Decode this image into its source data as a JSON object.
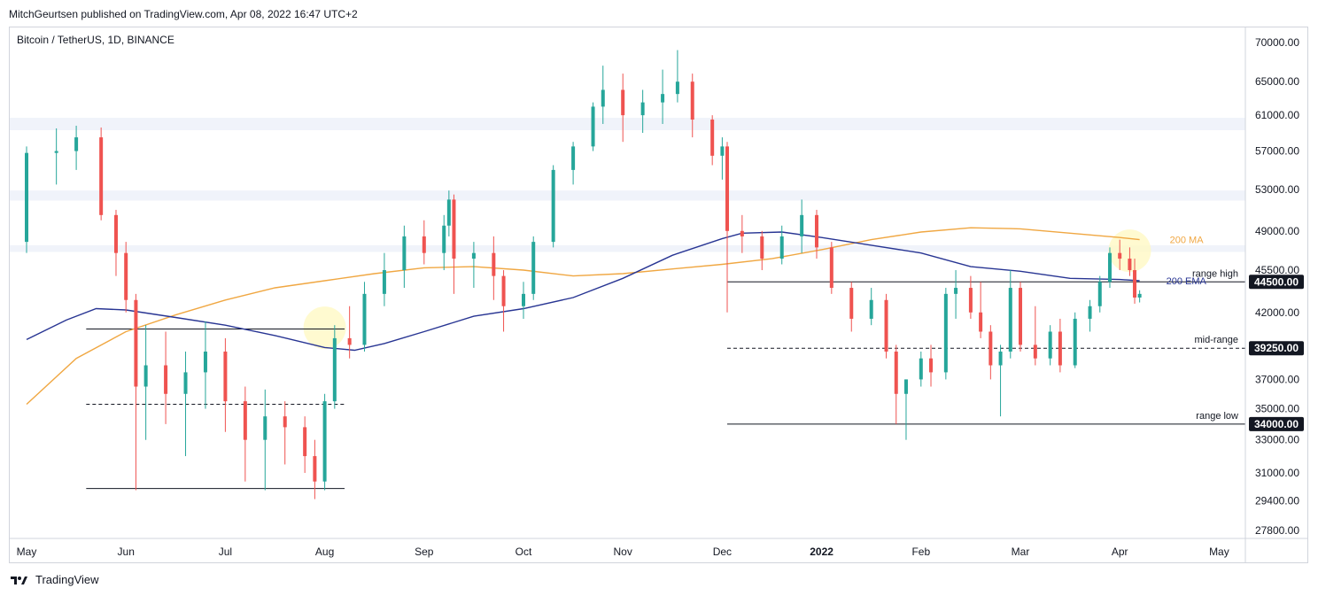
{
  "header": {
    "published": "MitchGeurtsen published on TradingView.com, Apr 08, 2022 16:47 UTC+2",
    "symbol": "Bitcoin / TetherUS, 1D, BINANCE"
  },
  "footer": {
    "brand": "TradingView"
  },
  "colors": {
    "up": "#26a69a",
    "down": "#ef5350",
    "ma": "#f0a742",
    "ema": "#283593",
    "zone": "#f0f3fa",
    "highlight": "#fff9c4",
    "axis_text": "#131722"
  },
  "chart_data": {
    "type": "candlestick",
    "title": "Bitcoin / TetherUS, 1D, BINANCE",
    "x_ticks": [
      "May",
      "Jun",
      "Jul",
      "Aug",
      "Sep",
      "Oct",
      "Nov",
      "Dec",
      "2022",
      "Feb",
      "Mar",
      "Apr",
      "May"
    ],
    "y_ticks": [
      70000,
      65000,
      61000,
      57000,
      53000,
      49000,
      45500,
      42000,
      37000,
      35000,
      33000,
      31000,
      29400,
      27800
    ],
    "y_tick_labels": [
      "70000.00",
      "65000.00",
      "61000.00",
      "57000.00",
      "53000.00",
      "49000.00",
      "45500.00",
      "42000.00",
      "37000.00",
      "35000.00",
      "33000.00",
      "31000.00",
      "29400.00",
      "27800.00"
    ],
    "y_scale": "log",
    "candles": [
      {
        "m": 0.0,
        "o": 48000,
        "h": 57500,
        "l": 47000,
        "c": 56800
      },
      {
        "m": 0.3,
        "o": 56800,
        "h": 59500,
        "l": 53500,
        "c": 57000
      },
      {
        "m": 0.5,
        "o": 57000,
        "h": 59800,
        "l": 55000,
        "c": 58500
      },
      {
        "m": 0.75,
        "o": 58500,
        "h": 59600,
        "l": 50000,
        "c": 50500
      },
      {
        "m": 0.9,
        "o": 50500,
        "h": 51000,
        "l": 45000,
        "c": 47000
      },
      {
        "m": 1.0,
        "o": 47000,
        "h": 48000,
        "l": 42000,
        "c": 43000
      },
      {
        "m": 1.1,
        "o": 43000,
        "h": 43500,
        "l": 30000,
        "c": 36500
      },
      {
        "m": 1.2,
        "o": 36500,
        "h": 41000,
        "l": 33000,
        "c": 38000
      },
      {
        "m": 1.4,
        "o": 38000,
        "h": 40500,
        "l": 34000,
        "c": 36000
      },
      {
        "m": 1.6,
        "o": 36000,
        "h": 39000,
        "l": 32000,
        "c": 37500
      },
      {
        "m": 1.8,
        "o": 37500,
        "h": 41300,
        "l": 35000,
        "c": 39000
      },
      {
        "m": 2.0,
        "o": 39000,
        "h": 40000,
        "l": 33500,
        "c": 35500
      },
      {
        "m": 2.2,
        "o": 35500,
        "h": 36500,
        "l": 30500,
        "c": 33000
      },
      {
        "m": 2.4,
        "o": 33000,
        "h": 36300,
        "l": 30000,
        "c": 34500
      },
      {
        "m": 2.6,
        "o": 34500,
        "h": 35500,
        "l": 31500,
        "c": 33800
      },
      {
        "m": 2.8,
        "o": 33800,
        "h": 34500,
        "l": 31000,
        "c": 32000
      },
      {
        "m": 2.9,
        "o": 32000,
        "h": 33000,
        "l": 29500,
        "c": 30500
      },
      {
        "m": 3.0,
        "o": 30500,
        "h": 36000,
        "l": 30000,
        "c": 35500
      },
      {
        "m": 3.1,
        "o": 35500,
        "h": 41000,
        "l": 35000,
        "c": 40000
      },
      {
        "m": 3.25,
        "o": 40000,
        "h": 42500,
        "l": 38500,
        "c": 39500
      },
      {
        "m": 3.4,
        "o": 39500,
        "h": 44500,
        "l": 39000,
        "c": 43500
      },
      {
        "m": 3.6,
        "o": 43500,
        "h": 47000,
        "l": 42500,
        "c": 45500
      },
      {
        "m": 3.8,
        "o": 45500,
        "h": 49500,
        "l": 44000,
        "c": 48500
      },
      {
        "m": 4.0,
        "o": 48500,
        "h": 50000,
        "l": 46000,
        "c": 47000
      },
      {
        "m": 4.2,
        "o": 47000,
        "h": 50500,
        "l": 45500,
        "c": 49500
      },
      {
        "m": 4.25,
        "o": 49500,
        "h": 52900,
        "l": 48500,
        "c": 52000
      },
      {
        "m": 4.3,
        "o": 52000,
        "h": 52500,
        "l": 43500,
        "c": 46500
      },
      {
        "m": 4.5,
        "o": 46500,
        "h": 48000,
        "l": 44000,
        "c": 47000
      },
      {
        "m": 4.7,
        "o": 47000,
        "h": 48500,
        "l": 43000,
        "c": 45000
      },
      {
        "m": 4.8,
        "o": 45000,
        "h": 45500,
        "l": 40500,
        "c": 42500
      },
      {
        "m": 5.0,
        "o": 42500,
        "h": 44500,
        "l": 41500,
        "c": 43500
      },
      {
        "m": 5.1,
        "o": 43500,
        "h": 48500,
        "l": 43000,
        "c": 48000
      },
      {
        "m": 5.3,
        "o": 48000,
        "h": 55500,
        "l": 47500,
        "c": 55000
      },
      {
        "m": 5.5,
        "o": 55000,
        "h": 58000,
        "l": 53500,
        "c": 57500
      },
      {
        "m": 5.7,
        "o": 57500,
        "h": 62500,
        "l": 57000,
        "c": 62000
      },
      {
        "m": 5.8,
        "o": 62000,
        "h": 67000,
        "l": 60000,
        "c": 64000
      },
      {
        "m": 6.0,
        "o": 64000,
        "h": 66000,
        "l": 58000,
        "c": 61000
      },
      {
        "m": 6.2,
        "o": 61000,
        "h": 64000,
        "l": 59000,
        "c": 62500
      },
      {
        "m": 6.4,
        "o": 62500,
        "h": 66500,
        "l": 60000,
        "c": 63500
      },
      {
        "m": 6.55,
        "o": 63500,
        "h": 69000,
        "l": 62500,
        "c": 65000
      },
      {
        "m": 6.7,
        "o": 65000,
        "h": 66000,
        "l": 58500,
        "c": 60500
      },
      {
        "m": 6.9,
        "o": 60500,
        "h": 61000,
        "l": 55500,
        "c": 56500
      },
      {
        "m": 7.0,
        "o": 56500,
        "h": 58500,
        "l": 54000,
        "c": 57500
      },
      {
        "m": 7.05,
        "o": 57500,
        "h": 58000,
        "l": 42000,
        "c": 49000
      },
      {
        "m": 7.2,
        "o": 49000,
        "h": 50500,
        "l": 47000,
        "c": 48500
      },
      {
        "m": 7.4,
        "o": 48500,
        "h": 49000,
        "l": 45500,
        "c": 46500
      },
      {
        "m": 7.6,
        "o": 46500,
        "h": 49500,
        "l": 46000,
        "c": 48500
      },
      {
        "m": 7.8,
        "o": 48500,
        "h": 52000,
        "l": 47000,
        "c": 50500
      },
      {
        "m": 7.95,
        "o": 50500,
        "h": 51000,
        "l": 46500,
        "c": 47500
      },
      {
        "m": 8.1,
        "o": 47500,
        "h": 48000,
        "l": 43500,
        "c": 44000
      },
      {
        "m": 8.3,
        "o": 44000,
        "h": 44500,
        "l": 40500,
        "c": 41500
      },
      {
        "m": 8.5,
        "o": 41500,
        "h": 44000,
        "l": 41000,
        "c": 43000
      },
      {
        "m": 8.65,
        "o": 43000,
        "h": 43500,
        "l": 38500,
        "c": 39000
      },
      {
        "m": 8.75,
        "o": 39000,
        "h": 39500,
        "l": 34000,
        "c": 36000
      },
      {
        "m": 8.85,
        "o": 36000,
        "h": 37000,
        "l": 33000,
        "c": 37000
      },
      {
        "m": 9.0,
        "o": 37000,
        "h": 39000,
        "l": 36500,
        "c": 38500
      },
      {
        "m": 9.1,
        "o": 38500,
        "h": 39500,
        "l": 36500,
        "c": 37500
      },
      {
        "m": 9.25,
        "o": 37500,
        "h": 44000,
        "l": 37000,
        "c": 43500
      },
      {
        "m": 9.35,
        "o": 43500,
        "h": 45500,
        "l": 41500,
        "c": 44000
      },
      {
        "m": 9.5,
        "o": 44000,
        "h": 45000,
        "l": 41500,
        "c": 42000
      },
      {
        "m": 9.6,
        "o": 42000,
        "h": 44500,
        "l": 40000,
        "c": 40500
      },
      {
        "m": 9.7,
        "o": 40500,
        "h": 41000,
        "l": 37000,
        "c": 38000
      },
      {
        "m": 9.8,
        "o": 38000,
        "h": 39500,
        "l": 34500,
        "c": 39000
      },
      {
        "m": 9.9,
        "o": 39000,
        "h": 45500,
        "l": 38500,
        "c": 44000
      },
      {
        "m": 10.0,
        "o": 44000,
        "h": 44500,
        "l": 39000,
        "c": 39500
      },
      {
        "m": 10.15,
        "o": 39500,
        "h": 42500,
        "l": 38000,
        "c": 38500
      },
      {
        "m": 10.3,
        "o": 38500,
        "h": 41000,
        "l": 38000,
        "c": 40500
      },
      {
        "m": 10.4,
        "o": 40500,
        "h": 41500,
        "l": 37500,
        "c": 38000
      },
      {
        "m": 10.55,
        "o": 38000,
        "h": 42000,
        "l": 37800,
        "c": 41500
      },
      {
        "m": 10.7,
        "o": 41500,
        "h": 43000,
        "l": 40500,
        "c": 42500
      },
      {
        "m": 10.8,
        "o": 42500,
        "h": 45000,
        "l": 42000,
        "c": 44500
      },
      {
        "m": 10.9,
        "o": 44500,
        "h": 47500,
        "l": 44000,
        "c": 47000
      },
      {
        "m": 11.0,
        "o": 47000,
        "h": 48200,
        "l": 45500,
        "c": 46500
      },
      {
        "m": 11.1,
        "o": 46500,
        "h": 47500,
        "l": 45000,
        "c": 45500
      },
      {
        "m": 11.15,
        "o": 45500,
        "h": 46500,
        "l": 42700,
        "c": 43200
      },
      {
        "m": 11.2,
        "o": 43200,
        "h": 43800,
        "l": 42800,
        "c": 43500
      }
    ],
    "ma_200": {
      "label": "200 MA",
      "points": [
        [
          0.0,
          35300
        ],
        [
          0.5,
          38500
        ],
        [
          1.0,
          40500
        ],
        [
          1.5,
          41800
        ],
        [
          2.0,
          43000
        ],
        [
          2.5,
          44000
        ],
        [
          3.0,
          44600
        ],
        [
          3.5,
          45200
        ],
        [
          4.0,
          45700
        ],
        [
          4.5,
          45800
        ],
        [
          5.0,
          45500
        ],
        [
          5.5,
          45000
        ],
        [
          6.0,
          45200
        ],
        [
          6.5,
          45600
        ],
        [
          7.0,
          46000
        ],
        [
          7.5,
          46500
        ],
        [
          8.0,
          47300
        ],
        [
          8.5,
          48200
        ],
        [
          9.0,
          48900
        ],
        [
          9.5,
          49300
        ],
        [
          10.0,
          49200
        ],
        [
          10.5,
          48800
        ],
        [
          11.0,
          48400
        ],
        [
          11.2,
          48200
        ]
      ]
    },
    "ema_200": {
      "label": "200 EMA",
      "points": [
        [
          0.0,
          39900
        ],
        [
          0.4,
          41400
        ],
        [
          0.7,
          42300
        ],
        [
          1.0,
          42200
        ],
        [
          1.5,
          41600
        ],
        [
          2.0,
          41000
        ],
        [
          2.5,
          40200
        ],
        [
          3.0,
          39300
        ],
        [
          3.3,
          39100
        ],
        [
          3.6,
          39600
        ],
        [
          4.0,
          40500
        ],
        [
          4.5,
          41700
        ],
        [
          5.0,
          42300
        ],
        [
          5.5,
          43200
        ],
        [
          6.0,
          44800
        ],
        [
          6.5,
          46800
        ],
        [
          7.0,
          48300
        ],
        [
          7.2,
          48800
        ],
        [
          7.6,
          48900
        ],
        [
          8.0,
          48400
        ],
        [
          8.5,
          47700
        ],
        [
          9.0,
          47000
        ],
        [
          9.5,
          45800
        ],
        [
          10.0,
          45400
        ],
        [
          10.5,
          44800
        ],
        [
          11.0,
          44700
        ],
        [
          11.2,
          44600
        ]
      ]
    },
    "h_levels": [
      {
        "label": "range high",
        "value": 44500,
        "value_label": "44500.00",
        "style": "solid",
        "from_m": 7.05,
        "to_m": 12.4
      },
      {
        "label": "mid-range",
        "value": 39250,
        "value_label": "39250.00",
        "style": "dashed",
        "from_m": 7.05,
        "to_m": 12.4
      },
      {
        "label": "range low",
        "value": 34000,
        "value_label": "34000.00",
        "style": "solid",
        "from_m": 7.05,
        "to_m": 12.4
      },
      {
        "label": "",
        "value": 40700,
        "value_label": "",
        "style": "solid",
        "from_m": 0.6,
        "to_m": 3.2
      },
      {
        "label": "",
        "value": 35300,
        "value_label": "",
        "style": "dashed",
        "from_m": 0.6,
        "to_m": 3.2
      },
      {
        "label": "",
        "value": 30100,
        "value_label": "",
        "style": "solid",
        "from_m": 0.6,
        "to_m": 3.2
      }
    ],
    "zones": [
      [
        59300,
        60700
      ],
      [
        51900,
        52900
      ],
      [
        47100,
        47700
      ]
    ],
    "highlights": [
      {
        "m": 3.0,
        "value": 40800
      },
      {
        "m": 11.1,
        "value": 47200
      }
    ],
    "grid": false,
    "axis_position": "right"
  }
}
